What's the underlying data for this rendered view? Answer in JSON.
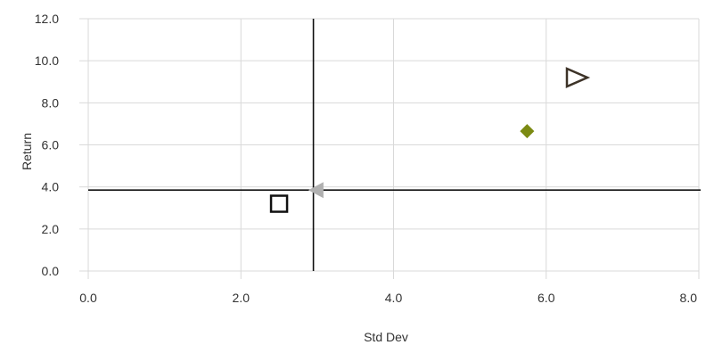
{
  "chart_data": {
    "type": "scatter",
    "title": "",
    "xlabel": "Std Dev",
    "ylabel": "Return",
    "xlim": [
      0,
      8
    ],
    "ylim": [
      0,
      12
    ],
    "x_ticks": [
      "0.0",
      "2.0",
      "4.0",
      "6.0",
      "8.0"
    ],
    "y_ticks": [
      "0.0",
      "2.0",
      "4.0",
      "6.0",
      "8.0",
      "10.0",
      "12.0"
    ],
    "grid": true,
    "legend": "none",
    "reference_lines": {
      "vertical_x": 2.95,
      "horizontal_y": 3.85
    },
    "points": [
      {
        "x": 2.5,
        "y": 3.2,
        "marker": "hollow-square",
        "color": "#111111"
      },
      {
        "x": 3.0,
        "y": 3.85,
        "marker": "left-triangle",
        "color": "#b0b0b0"
      },
      {
        "x": 5.75,
        "y": 6.65,
        "marker": "diamond",
        "color": "#7b8a12"
      },
      {
        "x": 6.4,
        "y": 9.2,
        "marker": "hollow-right-triangle",
        "color": "#3d3328"
      }
    ]
  }
}
